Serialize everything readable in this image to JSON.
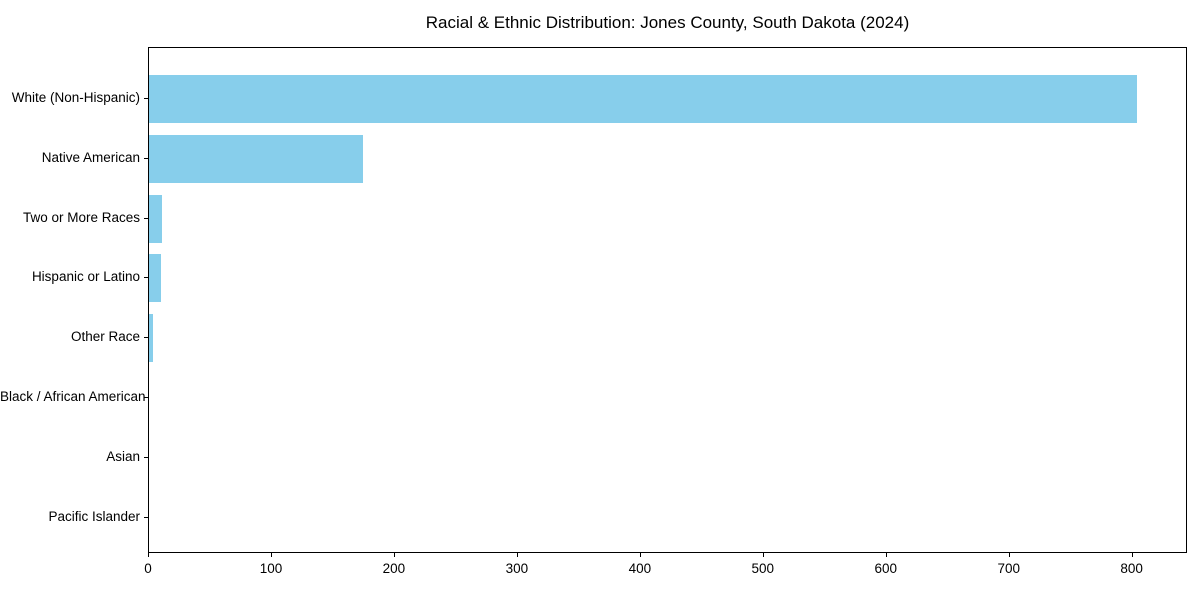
{
  "chart_data": {
    "type": "bar",
    "orientation": "horizontal",
    "title": "Racial & Ethnic Distribution: Jones County, South Dakota (2024)",
    "categories": [
      "White (Non-Hispanic)",
      "Native American",
      "Two or More Races",
      "Hispanic or Latino",
      "Other Race",
      "Black / African American",
      "Asian",
      "Pacific Islander"
    ],
    "values": [
      805,
      174,
      11,
      10,
      3,
      0,
      0,
      0
    ],
    "xlabel": "",
    "ylabel": "",
    "xlim": [
      0,
      845
    ],
    "xticks": [
      0,
      100,
      200,
      300,
      400,
      500,
      600,
      700,
      800
    ],
    "bar_color": "#87CEEB",
    "grid": false,
    "legend": null,
    "background_color": "#ffffff",
    "frame": "full-box"
  }
}
